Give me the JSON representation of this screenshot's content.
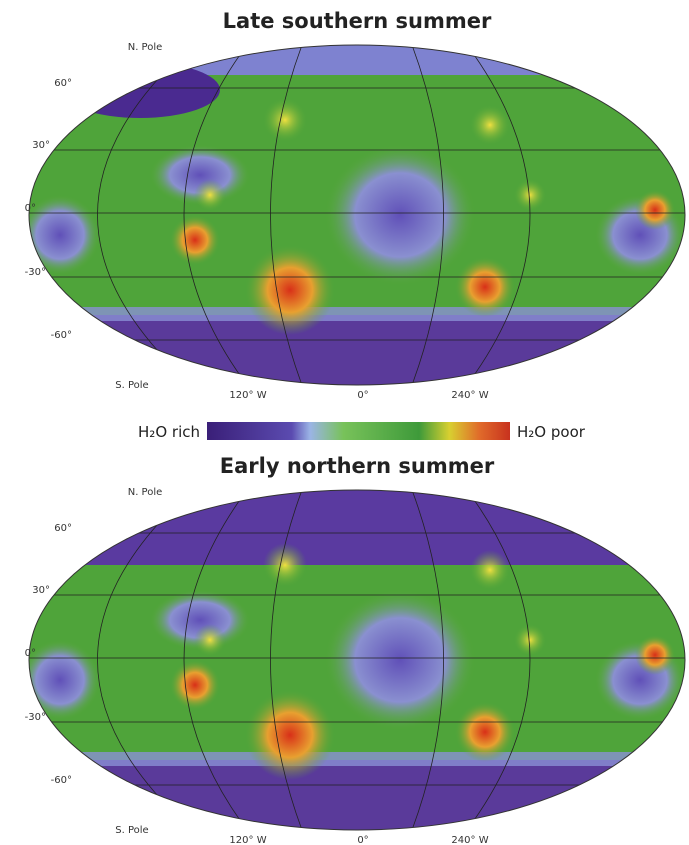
{
  "maps": [
    {
      "title": "Late southern summer",
      "north_pole": "N. Pole",
      "south_pole": "S. Pole",
      "latitudes": [
        "60°",
        "30°",
        "0°",
        "-30°",
        "-60°"
      ],
      "longitudes": [
        "120° W",
        "0°",
        "240° W"
      ]
    },
    {
      "title": "Early northern summer",
      "north_pole": "N. Pole",
      "south_pole": "S. Pole",
      "latitudes": [
        "60°",
        "30°",
        "0°",
        "-30°",
        "-60°"
      ],
      "longitudes": [
        "120° W",
        "0°",
        "240° W"
      ]
    }
  ],
  "colorbar": {
    "low_label": "H₂O rich",
    "high_label": "H₂O poor"
  }
}
